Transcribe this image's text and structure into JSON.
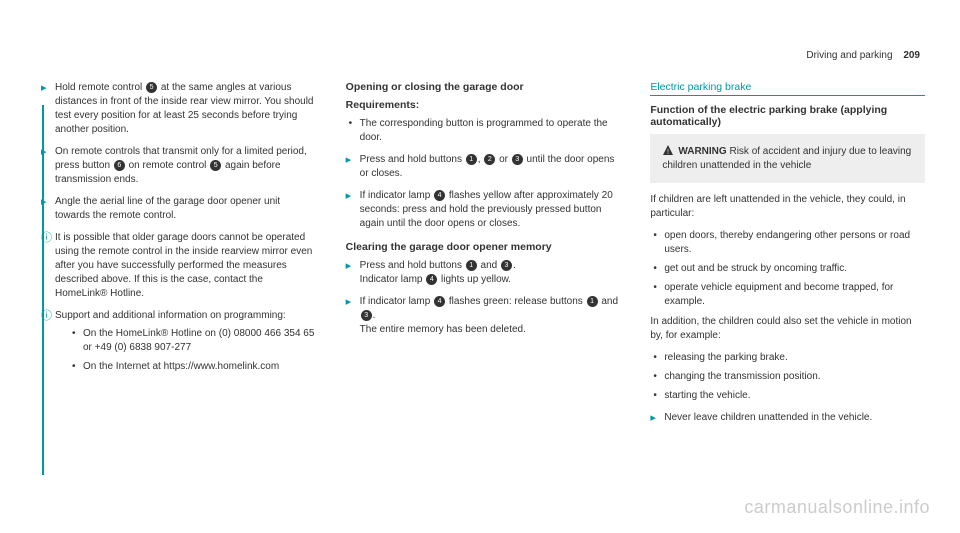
{
  "header": {
    "section": "Driving and parking",
    "page": "209"
  },
  "col1": {
    "steps": [
      {
        "type": "step",
        "pre": "Hold remote control ",
        "icon": "5",
        "post": " at the same angles at various distances in front of the inside rear view mirror. You should test every position for at least 25 seconds before trying another position."
      },
      {
        "type": "step",
        "pre": "On remote controls that transmit only for a limited period, press button ",
        "icon": "6",
        "mid": " on remote control ",
        "icon2": "5",
        "post": " again before transmission ends."
      },
      {
        "type": "step",
        "text": "Angle the aerial line of the garage door opener unit towards the remote control."
      },
      {
        "type": "info",
        "text": "It is possible that older garage doors cannot be operated using the remote control in the inside rearview mirror even after you have successfully performed the measures described above. If this is the case, contact the HomeLink® Hotline."
      },
      {
        "type": "info",
        "text": "Support and additional information on programming:",
        "sub": [
          "On the HomeLink® Hotline on (0) 08000 466 354 65 or +49 (0) 6838 907-277",
          "On the Internet at https://www.homelink.com"
        ]
      }
    ]
  },
  "col2": {
    "h1": "Opening or closing the garage door",
    "req_head": "Requirements:",
    "req": [
      "The corresponding button is programmed to operate the door."
    ],
    "steps": [
      {
        "pre": "Press and hold buttons ",
        "i1": "1",
        "m1": ", ",
        "i2": "2",
        "m2": " or ",
        "i3": "3",
        "post": " until the door opens or closes."
      },
      {
        "pre": "If indicator lamp ",
        "i1": "4",
        "post": " flashes yellow after approximately 20 seconds: press and hold the previously pressed button again until the door opens or closes."
      }
    ],
    "h2": "Clearing the garage door opener memory",
    "steps2": [
      {
        "line1_pre": "Press and hold buttons ",
        "l1i1": "1",
        "l1m": " and ",
        "l1i2": "3",
        "l1post": ".",
        "line2_pre": "Indicator lamp ",
        "l2i": "4",
        "l2post": " lights up yellow."
      },
      {
        "line1_pre": "If indicator lamp ",
        "l1i1": "4",
        "l1m": " flashes green: release buttons ",
        "l1i2": "1",
        "extra": " and ",
        "l1i3": "3",
        "l1post": ".",
        "line2": "The entire memory has been deleted."
      }
    ]
  },
  "col3": {
    "h1": "Electric parking brake",
    "h2": "Function of the electric parking brake (applying automatically)",
    "warn_label": "WARNING",
    "warn_text": " Risk of accident and injury due to leaving children unattended in the vehicle",
    "p1": "If children are left unattended in the vehicle, they could, in particular:",
    "bl1": [
      "open doors, thereby endangering other persons or road users.",
      "get out and be struck by oncoming traffic.",
      "operate vehicle equipment and become trapped, for example."
    ],
    "p2": "In addition, the children could also set the vehicle in motion by, for example:",
    "bl2": [
      "releasing the parking brake.",
      "changing the transmission position.",
      "starting the vehicle."
    ],
    "step": "Never leave children unattended in the vehicle."
  },
  "watermark": "carmanualsonline.info"
}
